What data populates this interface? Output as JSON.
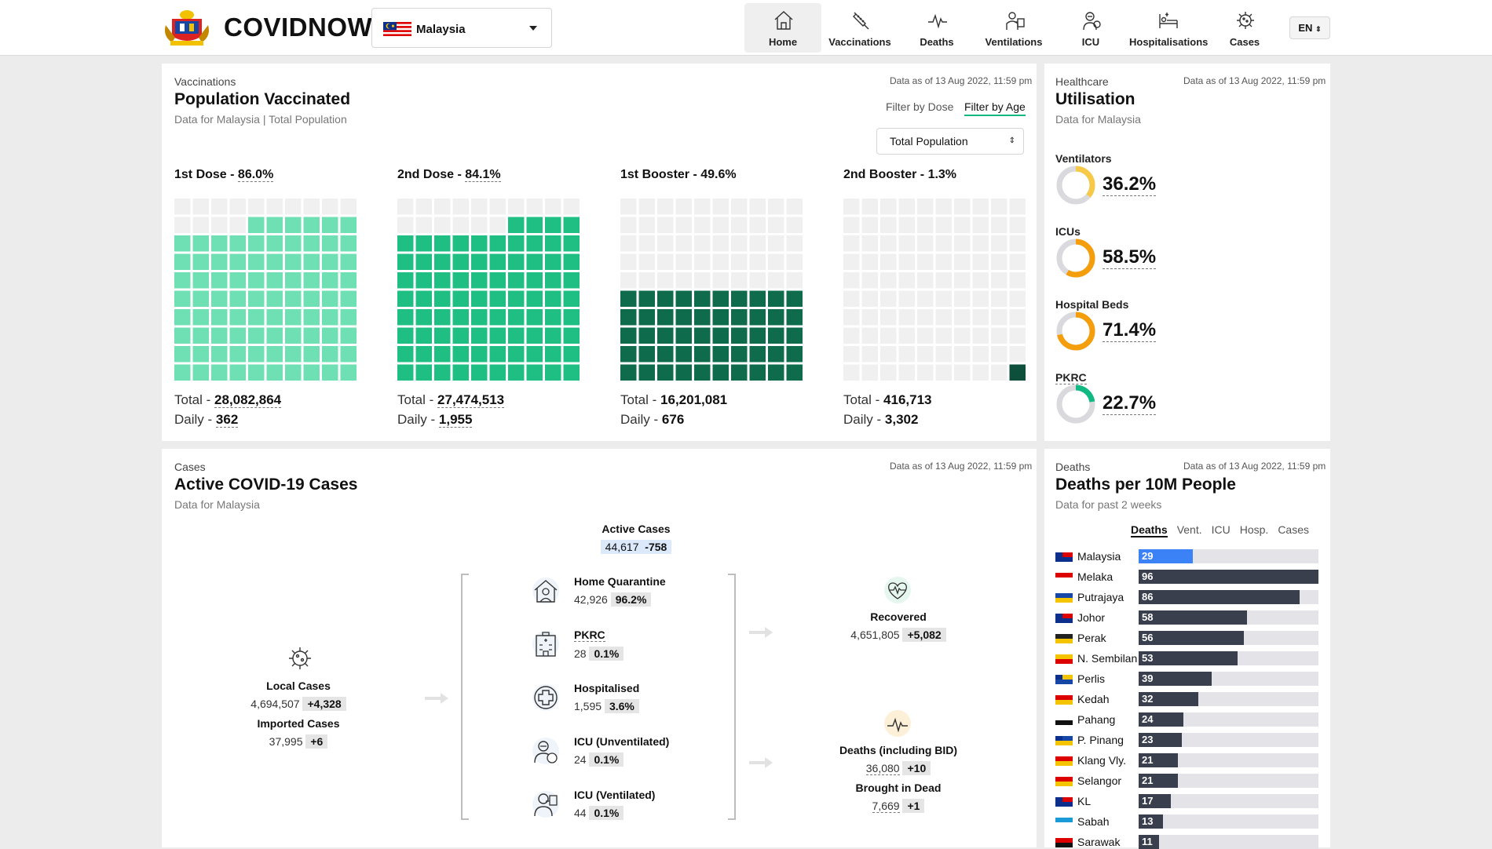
{
  "header": {
    "brand": "COVIDNOW",
    "country": "Malaysia",
    "lang": "EN",
    "nav": [
      {
        "label": "Home",
        "icon": "home-icon",
        "active": true
      },
      {
        "label": "Vaccinations",
        "icon": "syringe-icon"
      },
      {
        "label": "Deaths",
        "icon": "pulse-icon"
      },
      {
        "label": "Ventilations",
        "icon": "ventilator-icon"
      },
      {
        "label": "ICU",
        "icon": "icu-icon"
      },
      {
        "label": "Hospitalisations",
        "icon": "hospital-bed-icon"
      },
      {
        "label": "Cases",
        "icon": "virus-icon"
      }
    ]
  },
  "vax": {
    "eyebrow": "Vaccinations",
    "title": "Population Vaccinated",
    "sub_a": "Data for Malaysia",
    "sub_b": "Total Population",
    "asof": "Data as of 13 Aug 2022, 11:59 pm",
    "filter_dose": "Filter by Dose",
    "filter_age": "Filter by Age",
    "select": "Total Population",
    "doses": [
      {
        "label": "1st Dose - ",
        "pct": "86.0%",
        "pct_value": 86.0,
        "total_label": "Total - ",
        "total": "28,082,864",
        "daily_label": "Daily - ",
        "daily": "362",
        "color": "#6fe0b3"
      },
      {
        "label": "2nd Dose - ",
        "pct": "84.1%",
        "pct_value": 84.1,
        "total_label": "Total - ",
        "total": "27,474,513",
        "daily_label": "Daily - ",
        "daily": "1,955",
        "color": "#1fbf84"
      },
      {
        "label": "1st Booster - ",
        "pct": "49.6%",
        "pct_value": 49.6,
        "total_label": "Total - ",
        "total": "16,201,081",
        "daily_label": "Daily - ",
        "daily": "676",
        "color": "#0e6b4c"
      },
      {
        "label": "2nd Booster - ",
        "pct": "1.3%",
        "pct_value": 1.3,
        "total_label": "Total - ",
        "total": "416,713",
        "daily_label": "Daily - ",
        "daily": "3,302",
        "color": "#0d4f3a"
      }
    ]
  },
  "util": {
    "eyebrow": "Healthcare",
    "title": "Utilisation",
    "sub": "Data for Malaysia",
    "asof": "Data as of 13 Aug 2022, 11:59 pm",
    "items": [
      {
        "label": "Ventilators",
        "pct": "36.2%",
        "value": 36.2,
        "color": "#f7c948"
      },
      {
        "label": "ICUs",
        "pct": "58.5%",
        "value": 58.5,
        "color": "#f59e0b"
      },
      {
        "label": "Hospital Beds",
        "pct": "71.4%",
        "value": 71.4,
        "color": "#f59e0b"
      },
      {
        "label": "PKRC",
        "pct": "22.7%",
        "value": 22.7,
        "color": "#10b981"
      }
    ]
  },
  "cases": {
    "eyebrow": "Cases",
    "title": "Active COVID-19 Cases",
    "sub": "Data for Malaysia",
    "asof": "Data as of 13 Aug 2022, 11:59 pm",
    "active_label": "Active Cases",
    "active_value": "44,617",
    "active_delta": "-758",
    "local_label": "Local Cases",
    "local_value": "4,694,507",
    "local_delta": "+4,328",
    "imported_label": "Imported Cases",
    "imported_value": "37,995",
    "imported_delta": "+6",
    "breakdown": [
      {
        "label": "Home Quarantine",
        "value": "42,926",
        "pct": "96.2%",
        "icon": "home-quarantine-icon"
      },
      {
        "label": "PKRC",
        "value": "28",
        "pct": "0.1%",
        "icon": "pkrc-building-icon"
      },
      {
        "label": "Hospitalised",
        "value": "1,595",
        "pct": "3.6%",
        "icon": "medical-cross-icon"
      },
      {
        "label": "ICU (Unventilated)",
        "value": "24",
        "pct": "0.1%",
        "icon": "icu-patient-icon"
      },
      {
        "label": "ICU (Ventilated)",
        "value": "44",
        "pct": "0.1%",
        "icon": "ventilated-patient-icon"
      }
    ],
    "recovered_label": "Recovered",
    "recovered_value": "4,651,805",
    "recovered_delta": "+5,082",
    "deaths_label": "Deaths (including BID)",
    "deaths_value": "36,080",
    "deaths_delta": "+10",
    "bid_label": "Brought in Dead",
    "bid_value": "7,669",
    "bid_delta": "+1"
  },
  "deaths": {
    "eyebrow": "Deaths",
    "title": "Deaths per 10M People",
    "sub": "Data for past 2 weeks",
    "asof": "Data as of 13 Aug 2022, 11:59 pm",
    "tabs": [
      "Deaths",
      "Vent.",
      "ICU",
      "Hosp.",
      "Cases"
    ],
    "max": 96,
    "rows": [
      {
        "name": "Malaysia",
        "value": 29,
        "highlight": true
      },
      {
        "name": "Melaka",
        "value": 96
      },
      {
        "name": "Putrajaya",
        "value": 86
      },
      {
        "name": "Johor",
        "value": 58
      },
      {
        "name": "Perak",
        "value": 56
      },
      {
        "name": "N. Sembilan",
        "value": 53
      },
      {
        "name": "Perlis",
        "value": 39
      },
      {
        "name": "Kedah",
        "value": 32
      },
      {
        "name": "Pahang",
        "value": 24
      },
      {
        "name": "P. Pinang",
        "value": 23
      },
      {
        "name": "Klang Vly.",
        "value": 21
      },
      {
        "name": "Selangor",
        "value": 21
      },
      {
        "name": "KL",
        "value": 17
      },
      {
        "name": "Sabah",
        "value": 13
      },
      {
        "name": "Sarawak",
        "value": 11
      }
    ]
  }
}
